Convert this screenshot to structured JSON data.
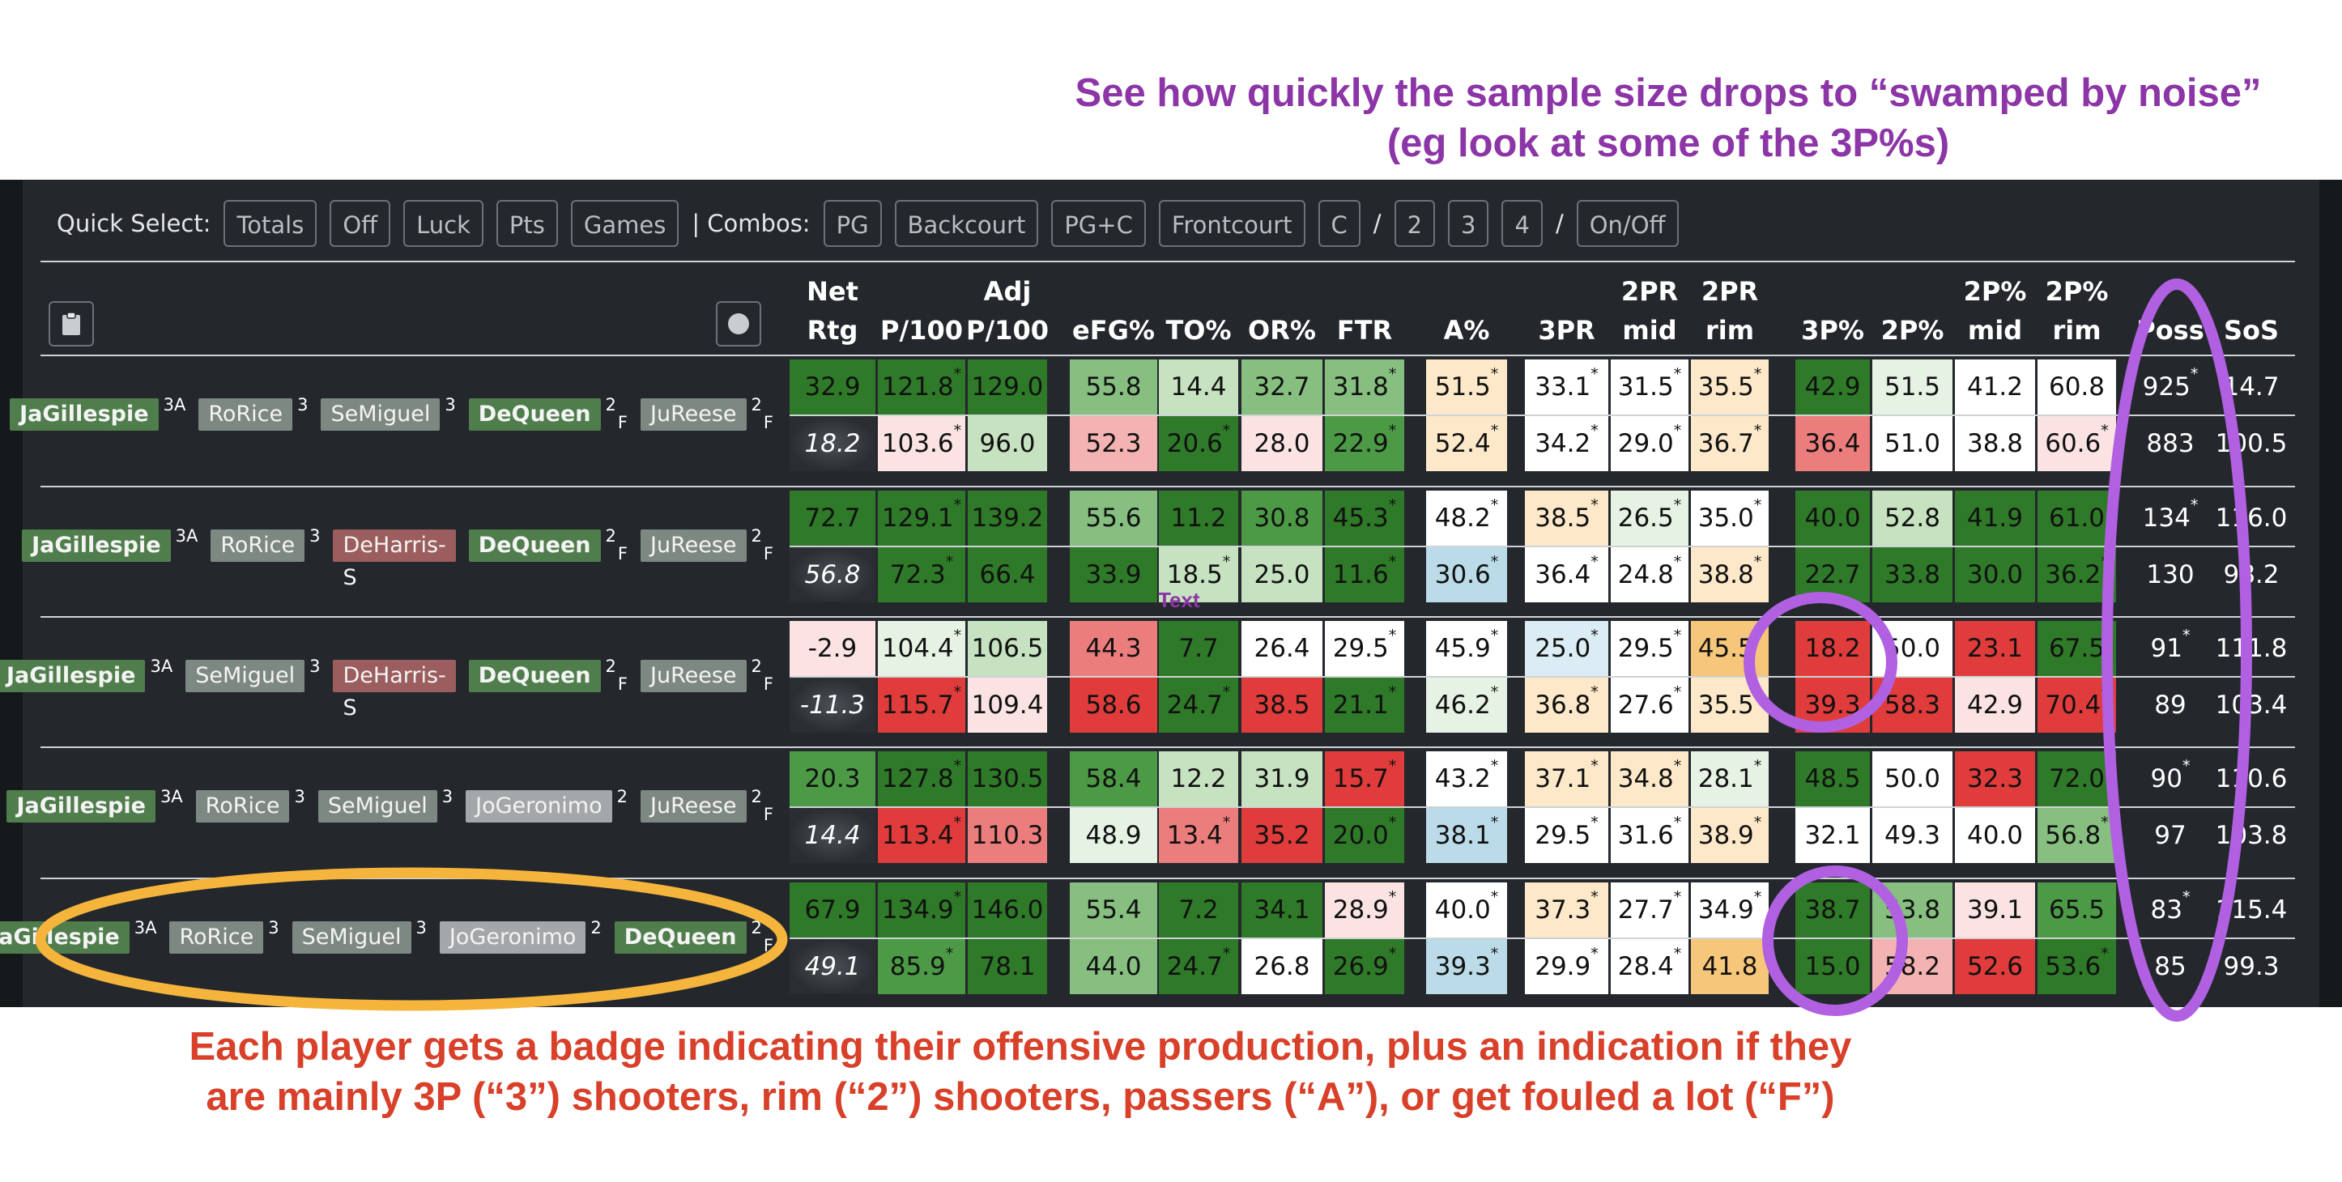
{
  "annotations": {
    "top_line1": "See how quickly the sample size drops to “swamped by noise”",
    "top_line2": "(eg look at some of the 3P%s)",
    "bottom_line1": "Each player gets a badge indicating their offensive production, plus an indication if they",
    "bottom_line2": "are mainly 3P (“3”) shooters, rim (“2”) shooters, passers (“A”), or get fouled a lot (“F”)",
    "text_marker": "Text"
  },
  "quick_select": {
    "label": "Quick Select:",
    "buttons": [
      "Totals",
      "Off",
      "Luck",
      "Pts",
      "Games"
    ],
    "combos_label": "| Combos:",
    "combo_buttons": [
      "PG",
      "Backcourt",
      "PG+C",
      "Frontcourt",
      "C"
    ],
    "sep1": "/",
    "num_buttons": [
      "2",
      "3",
      "4"
    ],
    "sep2": "/",
    "onoff": "On/Off"
  },
  "headers": [
    {
      "l1": "Net",
      "l2": "Rtg"
    },
    {
      "l1": "",
      "l2": "P/100"
    },
    {
      "l1": "Adj",
      "l2": "P/100"
    },
    {
      "l1": "",
      "l2": "eFG%"
    },
    {
      "l1": "",
      "l2": "TO%"
    },
    {
      "l1": "",
      "l2": "OR%"
    },
    {
      "l1": "",
      "l2": "FTR"
    },
    {
      "l1": "",
      "l2": "A%"
    },
    {
      "l1": "",
      "l2": "3PR"
    },
    {
      "l1": "2PR",
      "l2": "mid"
    },
    {
      "l1": "2PR",
      "l2": "rim"
    },
    {
      "l1": "",
      "l2": "3P%"
    },
    {
      "l1": "",
      "l2": "2P%"
    },
    {
      "l1": "2P%",
      "l2": "mid"
    },
    {
      "l1": "2P%",
      "l2": "rim"
    },
    {
      "l1": "",
      "l2": "Poss"
    },
    {
      "l1": "",
      "l2": "SoS"
    }
  ],
  "colors": {
    "dg": "#2e7a28",
    "mg": "#4c9a45",
    "lg": "#86bf80",
    "pg": "#c6e2c0",
    "vpg": "#e6f2e3",
    "w": "#ffffff",
    "vpr": "#fbe3e3",
    "pr": "#f4b3b3",
    "lr": "#ec7d7d",
    "dr": "#e03c3c",
    "py": "#fde9c9",
    "my": "#f6c77a",
    "pb": "#dbecf4",
    "mb": "#bcdbe8",
    "badge_green": "#4f7d4c",
    "badge_gray": "#7e8882",
    "badge_red": "#9b5d5d",
    "badge_lgray": "#a3a7aa",
    "purple": "#b060e0",
    "gold": "#f5b53d"
  },
  "groups": [
    {
      "players": [
        {
          "name": "JaGillespie",
          "tag": "3A",
          "sub": "",
          "style": "badge_green",
          "bold": true
        },
        {
          "name": "RoRice",
          "tag": "3",
          "sub": "",
          "style": "badge_gray",
          "bold": false
        },
        {
          "name": "SeMiguel",
          "tag": "3",
          "sub": "",
          "style": "badge_gray",
          "bold": false
        },
        {
          "name": "DeQueen",
          "tag": "2",
          "sub": "F",
          "style": "badge_green",
          "bold": true
        },
        {
          "name": "JuReese",
          "tag": "2",
          "sub": "F",
          "style": "badge_gray",
          "bold": false
        }
      ],
      "rows": [
        [
          [
            "32.9",
            "dg"
          ],
          [
            "121.8*",
            "dg"
          ],
          [
            "129.0",
            "dg"
          ],
          [
            "55.8",
            "lg"
          ],
          [
            "14.4",
            "pg"
          ],
          [
            "32.7",
            "lg"
          ],
          [
            "31.8*",
            "lg"
          ],
          [
            "51.5*",
            "py"
          ],
          [
            "33.1*",
            "w"
          ],
          [
            "31.5*",
            "w"
          ],
          [
            "35.5*",
            "py"
          ],
          [
            "42.9",
            "dg"
          ],
          [
            "51.5",
            "vpg"
          ],
          [
            "41.2",
            "w"
          ],
          [
            "60.8",
            "w"
          ],
          [
            "925*",
            "n"
          ],
          [
            "14.7",
            "n"
          ]
        ],
        [
          [
            "18.2",
            "net2"
          ],
          [
            "103.6*",
            "vpr"
          ],
          [
            "96.0",
            "pg"
          ],
          [
            "52.3",
            "pr"
          ],
          [
            "20.6*",
            "dg"
          ],
          [
            "28.0",
            "vpr"
          ],
          [
            "22.9*",
            "mg"
          ],
          [
            "52.4*",
            "py"
          ],
          [
            "34.2*",
            "w"
          ],
          [
            "29.0*",
            "w"
          ],
          [
            "36.7*",
            "py"
          ],
          [
            "36.4",
            "lr"
          ],
          [
            "51.0",
            "w"
          ],
          [
            "38.8",
            "w"
          ],
          [
            "60.6*",
            "vpr"
          ],
          [
            "883",
            "n"
          ],
          [
            "100.5",
            "n"
          ]
        ]
      ]
    },
    {
      "players": [
        {
          "name": "JaGillespie",
          "tag": "3A",
          "sub": "",
          "style": "badge_green",
          "bold": true
        },
        {
          "name": "RoRice",
          "tag": "3",
          "sub": "",
          "style": "badge_gray",
          "bold": false
        },
        {
          "name": "DeHarris-S",
          "tag": "",
          "sub": "",
          "style": "badge_red",
          "bold": false
        },
        {
          "name": "DeQueen",
          "tag": "2",
          "sub": "F",
          "style": "badge_green",
          "bold": true
        },
        {
          "name": "JuReese",
          "tag": "2",
          "sub": "F",
          "style": "badge_gray",
          "bold": false
        }
      ],
      "rows": [
        [
          [
            "72.7",
            "dg"
          ],
          [
            "129.1*",
            "dg"
          ],
          [
            "139.2",
            "dg"
          ],
          [
            "55.6",
            "lg"
          ],
          [
            "11.2",
            "dg"
          ],
          [
            "30.8",
            "mg"
          ],
          [
            "45.3*",
            "dg"
          ],
          [
            "48.2*",
            "w"
          ],
          [
            "38.5*",
            "py"
          ],
          [
            "26.5*",
            "vpg"
          ],
          [
            "35.0*",
            "w"
          ],
          [
            "40.0",
            "dg"
          ],
          [
            "52.8",
            "pg"
          ],
          [
            "41.9",
            "dg"
          ],
          [
            "61.0",
            "dg"
          ],
          [
            "134*",
            "n"
          ],
          [
            "116.0",
            "n"
          ]
        ],
        [
          [
            "56.8",
            "net2"
          ],
          [
            "72.3*",
            "dg"
          ],
          [
            "66.4",
            "dg"
          ],
          [
            "33.9",
            "dg"
          ],
          [
            "18.5*",
            "pg"
          ],
          [
            "25.0",
            "pg"
          ],
          [
            "11.6*",
            "dg"
          ],
          [
            "30.6*",
            "mb"
          ],
          [
            "36.4*",
            "w"
          ],
          [
            "24.8*",
            "w"
          ],
          [
            "38.8*",
            "py"
          ],
          [
            "22.7",
            "dg"
          ],
          [
            "33.8",
            "dg"
          ],
          [
            "30.0",
            "dg"
          ],
          [
            "36.2*",
            "dg"
          ],
          [
            "130",
            "n"
          ],
          [
            "98.2",
            "n"
          ]
        ]
      ]
    },
    {
      "players": [
        {
          "name": "JaGillespie",
          "tag": "3A",
          "sub": "",
          "style": "badge_green",
          "bold": true
        },
        {
          "name": "SeMiguel",
          "tag": "3",
          "sub": "",
          "style": "badge_gray",
          "bold": false
        },
        {
          "name": "DeHarris-S",
          "tag": "",
          "sub": "",
          "style": "badge_red",
          "bold": false
        },
        {
          "name": "DeQueen",
          "tag": "2",
          "sub": "F",
          "style": "badge_green",
          "bold": true
        },
        {
          "name": "JuReese",
          "tag": "2",
          "sub": "F",
          "style": "badge_gray",
          "bold": false
        }
      ],
      "rows": [
        [
          [
            "-2.9",
            "vpr"
          ],
          [
            "104.4*",
            "vpg"
          ],
          [
            "106.5",
            "pg"
          ],
          [
            "44.3",
            "lr"
          ],
          [
            "7.7",
            "dg"
          ],
          [
            "26.4",
            "w"
          ],
          [
            "29.5*",
            "w"
          ],
          [
            "45.9*",
            "w"
          ],
          [
            "25.0*",
            "pb"
          ],
          [
            "29.5*",
            "w"
          ],
          [
            "45.5*",
            "my"
          ],
          [
            "18.2",
            "dr"
          ],
          [
            "50.0",
            "w"
          ],
          [
            "23.1",
            "dr"
          ],
          [
            "67.5",
            "dg"
          ],
          [
            "91*",
            "n"
          ],
          [
            "111.8",
            "n"
          ]
        ],
        [
          [
            "-11.3",
            "net2"
          ],
          [
            "115.7*",
            "dr"
          ],
          [
            "109.4",
            "vpr"
          ],
          [
            "58.6",
            "dr"
          ],
          [
            "24.7*",
            "dg"
          ],
          [
            "38.5",
            "dr"
          ],
          [
            "21.1*",
            "dg"
          ],
          [
            "46.2*",
            "vpg"
          ],
          [
            "36.8*",
            "py"
          ],
          [
            "27.6*",
            "w"
          ],
          [
            "35.5*",
            "py"
          ],
          [
            "39.3",
            "dr"
          ],
          [
            "58.3",
            "dr"
          ],
          [
            "42.9",
            "vpr"
          ],
          [
            "70.4*",
            "dr"
          ],
          [
            "89",
            "n"
          ],
          [
            "103.4",
            "n"
          ]
        ]
      ]
    },
    {
      "players": [
        {
          "name": "JaGillespie",
          "tag": "3A",
          "sub": "",
          "style": "badge_green",
          "bold": true
        },
        {
          "name": "RoRice",
          "tag": "3",
          "sub": "",
          "style": "badge_gray",
          "bold": false
        },
        {
          "name": "SeMiguel",
          "tag": "3",
          "sub": "",
          "style": "badge_gray",
          "bold": false
        },
        {
          "name": "JoGeronimo",
          "tag": "2",
          "sub": "",
          "style": "badge_lgray",
          "bold": false
        },
        {
          "name": "JuReese",
          "tag": "2",
          "sub": "F",
          "style": "badge_gray",
          "bold": false
        }
      ],
      "rows": [
        [
          [
            "20.3",
            "mg"
          ],
          [
            "127.8*",
            "dg"
          ],
          [
            "130.5",
            "dg"
          ],
          [
            "58.4",
            "mg"
          ],
          [
            "12.2",
            "pg"
          ],
          [
            "31.9",
            "pg"
          ],
          [
            "15.7*",
            "dr"
          ],
          [
            "43.2*",
            "w"
          ],
          [
            "37.1*",
            "py"
          ],
          [
            "34.8*",
            "py"
          ],
          [
            "28.1*",
            "vpg"
          ],
          [
            "48.5",
            "dg"
          ],
          [
            "50.0",
            "w"
          ],
          [
            "32.3",
            "dr"
          ],
          [
            "72.0",
            "dg"
          ],
          [
            "90*",
            "n"
          ],
          [
            "110.6",
            "n"
          ]
        ],
        [
          [
            "14.4",
            "net2"
          ],
          [
            "113.4*",
            "dr"
          ],
          [
            "110.3",
            "lr"
          ],
          [
            "48.9",
            "vpg"
          ],
          [
            "13.4*",
            "lr"
          ],
          [
            "35.2",
            "dr"
          ],
          [
            "20.0*",
            "dg"
          ],
          [
            "38.1*",
            "mb"
          ],
          [
            "29.5*",
            "w"
          ],
          [
            "31.6*",
            "w"
          ],
          [
            "38.9*",
            "py"
          ],
          [
            "32.1",
            "w"
          ],
          [
            "49.3",
            "w"
          ],
          [
            "40.0",
            "w"
          ],
          [
            "56.8*",
            "lg"
          ],
          [
            "97",
            "n"
          ],
          [
            "103.8",
            "n"
          ]
        ]
      ]
    },
    {
      "players": [
        {
          "name": "JaGillespie",
          "tag": "3A",
          "sub": "",
          "style": "badge_green",
          "bold": true
        },
        {
          "name": "RoRice",
          "tag": "3",
          "sub": "",
          "style": "badge_gray",
          "bold": false
        },
        {
          "name": "SeMiguel",
          "tag": "3",
          "sub": "",
          "style": "badge_gray",
          "bold": false
        },
        {
          "name": "JoGeronimo",
          "tag": "2",
          "sub": "",
          "style": "badge_lgray",
          "bold": false
        },
        {
          "name": "DeQueen",
          "tag": "2",
          "sub": "F",
          "style": "badge_green",
          "bold": true
        }
      ],
      "rows": [
        [
          [
            "67.9",
            "dg"
          ],
          [
            "134.9*",
            "dg"
          ],
          [
            "146.0",
            "dg"
          ],
          [
            "55.4",
            "lg"
          ],
          [
            "7.2",
            "dg"
          ],
          [
            "34.1",
            "dg"
          ],
          [
            "28.9*",
            "vpr"
          ],
          [
            "40.0*",
            "w"
          ],
          [
            "37.3*",
            "py"
          ],
          [
            "27.7*",
            "w"
          ],
          [
            "34.9*",
            "w"
          ],
          [
            "38.7",
            "dg"
          ],
          [
            "53.8",
            "lg"
          ],
          [
            "39.1",
            "vpr"
          ],
          [
            "65.5",
            "mg"
          ],
          [
            "83*",
            "n"
          ],
          [
            "115.4",
            "n"
          ]
        ],
        [
          [
            "49.1",
            "net2"
          ],
          [
            "85.9*",
            "mg"
          ],
          [
            "78.1",
            "dg"
          ],
          [
            "44.0",
            "lg"
          ],
          [
            "24.7*",
            "dg"
          ],
          [
            "26.8",
            "w"
          ],
          [
            "26.9*",
            "dg"
          ],
          [
            "39.3*",
            "mb"
          ],
          [
            "29.9*",
            "w"
          ],
          [
            "28.4*",
            "w"
          ],
          [
            "41.8",
            "my"
          ],
          [
            "15.0",
            "dg"
          ],
          [
            "58.2",
            "pr"
          ],
          [
            "52.6",
            "dr"
          ],
          [
            "53.6*",
            "dg"
          ],
          [
            "85",
            "n"
          ],
          [
            "99.3",
            "n"
          ]
        ]
      ]
    }
  ]
}
